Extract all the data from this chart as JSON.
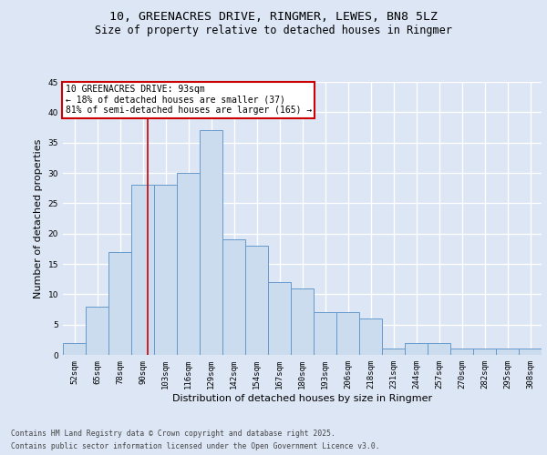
{
  "title": "10, GREENACRES DRIVE, RINGMER, LEWES, BN8 5LZ",
  "subtitle": "Size of property relative to detached houses in Ringmer",
  "xlabel": "Distribution of detached houses by size in Ringmer",
  "ylabel": "Number of detached properties",
  "bar_labels": [
    "52sqm",
    "65sqm",
    "78sqm",
    "90sqm",
    "103sqm",
    "116sqm",
    "129sqm",
    "142sqm",
    "154sqm",
    "167sqm",
    "180sqm",
    "193sqm",
    "206sqm",
    "218sqm",
    "231sqm",
    "244sqm",
    "257sqm",
    "270sqm",
    "282sqm",
    "295sqm",
    "308sqm"
  ],
  "bar_values": [
    2,
    8,
    17,
    28,
    28,
    30,
    37,
    19,
    18,
    12,
    11,
    7,
    7,
    6,
    1,
    2,
    2,
    1,
    1,
    1,
    1
  ],
  "bar_color": "#ccdcef",
  "bar_edge_color": "#6699cc",
  "background_color": "#dce6f5",
  "grid_color": "#ffffff",
  "annotation_line1": "10 GREENACRES DRIVE: 93sqm",
  "annotation_line2": "← 18% of detached houses are smaller (37)",
  "annotation_line3": "81% of semi-detached houses are larger (165) →",
  "annotation_box_color": "#ffffff",
  "annotation_box_edge_color": "#cc0000",
  "ylim": [
    0,
    45
  ],
  "yticks": [
    0,
    5,
    10,
    15,
    20,
    25,
    30,
    35,
    40,
    45
  ],
  "footer_line1": "Contains HM Land Registry data © Crown copyright and database right 2025.",
  "footer_line2": "Contains public sector information licensed under the Open Government Licence v3.0.",
  "title_fontsize": 9.5,
  "subtitle_fontsize": 8.5,
  "tick_fontsize": 6.5,
  "ylabel_fontsize": 8,
  "xlabel_fontsize": 8,
  "annotation_fontsize": 7,
  "footer_fontsize": 5.8
}
